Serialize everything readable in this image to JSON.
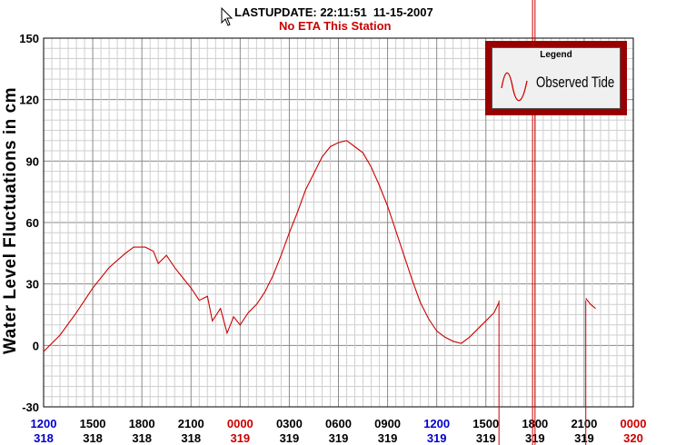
{
  "header": {
    "last_update": "LASTUPDATE: 22:11:51  11-15-2007",
    "eta": "No ETA This Station"
  },
  "legend": {
    "title": "Legend",
    "label": "Observed Tide"
  },
  "chart_data": {
    "type": "line",
    "title": "",
    "ylabel": "Water Level Fluctuations in cm",
    "xlabel": "",
    "ylim": [
      -30,
      150
    ],
    "yticks": [
      -30,
      0,
      30,
      60,
      90,
      120,
      150
    ],
    "xlim_hours": [
      0,
      36
    ],
    "xticks": [
      {
        "time": "1200",
        "day": "318",
        "color": "blue"
      },
      {
        "time": "1500",
        "day": "318",
        "color": "black"
      },
      {
        "time": "1800",
        "day": "318",
        "color": "black"
      },
      {
        "time": "2100",
        "day": "318",
        "color": "black"
      },
      {
        "time": "0000",
        "day": "319",
        "color": "red"
      },
      {
        "time": "0300",
        "day": "319",
        "color": "black"
      },
      {
        "time": "0600",
        "day": "319",
        "color": "black"
      },
      {
        "time": "0900",
        "day": "319",
        "color": "black"
      },
      {
        "time": "1200",
        "day": "319",
        "color": "blue"
      },
      {
        "time": "1500",
        "day": "319",
        "color": "black"
      },
      {
        "time": "1800",
        "day": "319",
        "color": "black"
      },
      {
        "time": "2100",
        "day": "319",
        "color": "black"
      },
      {
        "time": "0000",
        "day": "320",
        "color": "red"
      }
    ],
    "grid": true,
    "series": [
      {
        "name": "Observed Tide",
        "color": "#cc0000",
        "segments": [
          [
            [
              0,
              -3
            ],
            [
              1,
              5
            ],
            [
              2,
              16
            ],
            [
              3,
              28
            ],
            [
              4,
              38
            ],
            [
              5,
              45
            ],
            [
              5.5,
              48
            ],
            [
              6.2,
              48
            ],
            [
              6.7,
              46
            ],
            [
              7,
              40
            ],
            [
              7.5,
              44
            ],
            [
              8,
              38
            ],
            [
              8.5,
              33
            ],
            [
              9,
              28
            ],
            [
              9.5,
              22
            ],
            [
              10,
              24
            ],
            [
              10.3,
              12
            ],
            [
              10.8,
              18
            ],
            [
              11.2,
              6
            ],
            [
              11.6,
              14
            ],
            [
              12,
              10
            ],
            [
              12.5,
              16
            ],
            [
              13,
              20
            ],
            [
              13.5,
              26
            ],
            [
              14,
              34
            ],
            [
              14.5,
              44
            ],
            [
              15,
              55
            ],
            [
              15.5,
              65
            ],
            [
              16,
              76
            ],
            [
              16.5,
              84
            ],
            [
              17,
              92
            ],
            [
              17.5,
              97
            ],
            [
              18,
              99
            ],
            [
              18.5,
              100
            ],
            [
              19,
              97
            ],
            [
              19.5,
              94
            ],
            [
              20,
              87
            ],
            [
              20.5,
              78
            ],
            [
              21,
              68
            ],
            [
              21.5,
              56
            ],
            [
              22,
              44
            ],
            [
              22.5,
              32
            ],
            [
              23,
              21
            ],
            [
              23.5,
              13
            ],
            [
              24,
              7
            ],
            [
              24.5,
              4
            ],
            [
              25,
              2
            ],
            [
              25.5,
              1
            ],
            [
              26,
              4
            ],
            [
              26.5,
              8
            ],
            [
              27,
              12
            ],
            [
              27.5,
              16
            ],
            [
              27.8,
              21
            ]
          ],
          [
            [
              33.1,
              23
            ],
            [
              33.4,
              20
            ],
            [
              33.7,
              18
            ]
          ]
        ],
        "spikes_hours": [
          27.8,
          33.1
        ]
      }
    ],
    "annotations": [
      {
        "type": "vertical_line",
        "x_hours": 29.85,
        "color": "#cc0000"
      },
      {
        "type": "vertical_line",
        "x_hours": 30.0,
        "color": "#cc0000"
      }
    ]
  }
}
